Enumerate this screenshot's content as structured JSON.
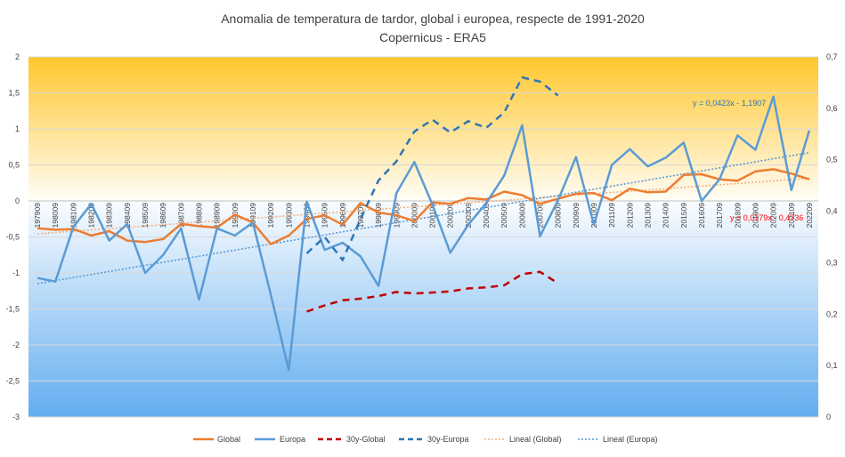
{
  "chart_data": {
    "type": "line",
    "title": "Anomalia de temperatura de tardor, global i europea, respecte de 1991-2020",
    "subtitle": "Copernicus - ERA5",
    "xlabel": "",
    "ylabel": "",
    "y_left": {
      "lim": [
        -3,
        2
      ],
      "ticks": [
        2,
        1.5,
        1,
        0.5,
        0,
        -0.5,
        -1,
        -1.5,
        -2,
        -2.5,
        -3
      ],
      "tick_labels": [
        "2",
        "1,5",
        "1",
        "0,5",
        "0",
        "-0,5",
        "-1",
        "-1,5",
        "-2",
        "-2,5",
        "-3"
      ]
    },
    "y_right": {
      "lim": [
        0,
        0.7
      ],
      "ticks": [
        0.7,
        0.6,
        0.5,
        0.4,
        0.3,
        0.2,
        0.1,
        0
      ],
      "tick_labels": [
        "0,7",
        "0,6",
        "0,5",
        "0,4",
        "0,3",
        "0,2",
        "0,1",
        "0"
      ]
    },
    "categories": [
      "197909",
      "198009",
      "198109",
      "198209",
      "198309",
      "198409",
      "198509",
      "198609",
      "198709",
      "198809",
      "198909",
      "199009",
      "199109",
      "199209",
      "199309",
      "199409",
      "199509",
      "199609",
      "199709",
      "199809",
      "199909",
      "200009",
      "200109",
      "200209",
      "200309",
      "200409",
      "200509",
      "200609",
      "200709",
      "200809",
      "200909",
      "201009",
      "201109",
      "201209",
      "201309",
      "201409",
      "201509",
      "201609",
      "201709",
      "201809",
      "201909",
      "202009",
      "202109",
      "202209"
    ],
    "series": [
      {
        "name": "Global",
        "axis": "left",
        "color": "#ed7d31",
        "dash": "",
        "width": 2.5,
        "values": [
          -0.38,
          -0.4,
          -0.39,
          -0.48,
          -0.42,
          -0.55,
          -0.57,
          -0.53,
          -0.32,
          -0.35,
          -0.37,
          -0.19,
          -0.3,
          -0.6,
          -0.48,
          -0.25,
          -0.2,
          -0.33,
          -0.03,
          -0.16,
          -0.2,
          -0.28,
          -0.02,
          -0.04,
          0.04,
          0.02,
          0.13,
          0.08,
          -0.04,
          0.03,
          0.1,
          0.11,
          0.01,
          0.17,
          0.12,
          0.13,
          0.36,
          0.37,
          0.3,
          0.28,
          0.41,
          0.44,
          0.38,
          0.3
        ]
      },
      {
        "name": "Europa",
        "axis": "left",
        "color": "#5b9bd5",
        "dash": "",
        "width": 2.5,
        "values": [
          -1.07,
          -1.12,
          -0.36,
          -0.04,
          -0.55,
          -0.32,
          -1.0,
          -0.75,
          -0.38,
          -1.37,
          -0.38,
          -0.48,
          -0.3,
          -1.3,
          -2.35,
          -0.01,
          -0.68,
          -0.58,
          -0.77,
          -1.18,
          0.11,
          0.54,
          -0.05,
          -0.72,
          -0.33,
          -0.03,
          0.35,
          1.05,
          -0.49,
          0.01,
          0.61,
          -0.33,
          0.5,
          0.72,
          0.48,
          0.6,
          0.81,
          0.0,
          0.3,
          0.91,
          0.71,
          1.45,
          0.15,
          0.98
        ]
      },
      {
        "name": "30y-Global",
        "axis": "right",
        "color": "#c00000",
        "dash": "8,6",
        "width": 2.5,
        "values": [
          null,
          null,
          null,
          null,
          null,
          null,
          null,
          null,
          null,
          null,
          null,
          null,
          null,
          null,
          null,
          0.205,
          0.217,
          0.227,
          0.23,
          0.235,
          0.243,
          0.24,
          0.242,
          0.244,
          0.25,
          0.252,
          0.256,
          0.278,
          0.282,
          0.26,
          null,
          null,
          null,
          null,
          null,
          null,
          null,
          null,
          null,
          null,
          null,
          null,
          null,
          null
        ]
      },
      {
        "name": "30y-Europa",
        "axis": "right",
        "color": "#2e75b6",
        "dash": "8,6",
        "width": 2.5,
        "values": [
          null,
          null,
          null,
          null,
          null,
          null,
          null,
          null,
          null,
          null,
          null,
          null,
          null,
          null,
          null,
          0.318,
          0.35,
          0.305,
          0.385,
          0.46,
          0.497,
          0.555,
          0.578,
          0.553,
          0.575,
          0.562,
          0.592,
          0.66,
          0.652,
          0.625,
          null,
          null,
          null,
          null,
          null,
          null,
          null,
          null,
          null,
          null,
          null,
          null,
          null,
          null
        ]
      }
    ],
    "trendlines": [
      {
        "name": "Lineal (Global)",
        "of": "Global",
        "color": "#f4b183",
        "dash": "2,2",
        "equation": "y = 0,0179x - 0,4736",
        "equation_color": "#ff0000",
        "slope": 0.0179,
        "intercept": -0.4736
      },
      {
        "name": "Lineal (Europa)",
        "of": "Europa",
        "color": "#5b9bd5",
        "dash": "2,2",
        "equation": "y = 0,0423x - 1,1907",
        "equation_color": "#2e75b6",
        "slope": 0.0423,
        "intercept": -1.1907
      }
    ],
    "legend_position": "bottom",
    "background": {
      "top_color": "#ffbf00",
      "top_range": [
        0,
        2
      ],
      "bottom_color": "#5aa9ef",
      "bottom_range": [
        -3,
        0
      ]
    },
    "grid": true
  }
}
